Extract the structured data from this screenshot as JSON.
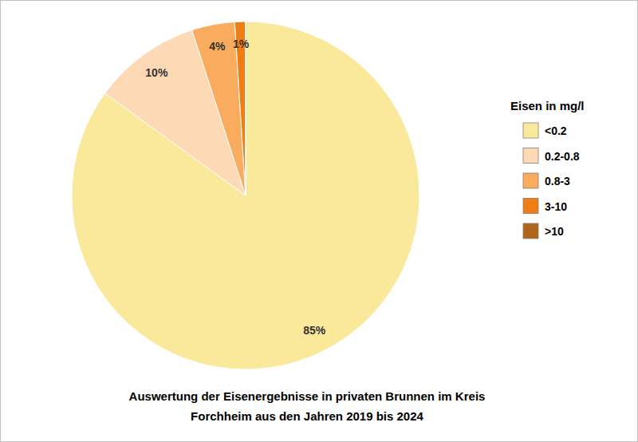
{
  "chart_data": {
    "type": "pie",
    "title": "Auswertung der Eisenergebnisse in privaten Brunnen im Kreis\nForchheim aus den Jahren 2019 bis 2024",
    "legend_title": "Eisen in mg/l",
    "categories": [
      "<0.2",
      "0.2-0.8",
      "0.8-3",
      "3-10",
      ">10"
    ],
    "values": [
      85,
      10,
      4,
      1,
      0
    ],
    "value_labels": [
      "85%",
      "10%",
      "4%",
      "1%",
      null
    ],
    "colors": [
      "#fae99a",
      "#fdd9b5",
      "#f9ab5e",
      "#f07c14",
      "#b0651a"
    ],
    "data_labels": true,
    "legend": "right"
  }
}
